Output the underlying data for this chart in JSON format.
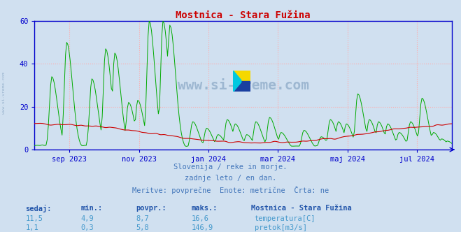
{
  "title": "Mostnica - Stara Fužina",
  "title_color": "#cc0000",
  "bg_color": "#d0e0f0",
  "plot_bg_color": "#d0e0f0",
  "grid_color": "#ffaaaa",
  "xlim_days": 365,
  "ylim": [
    0,
    60
  ],
  "yticks": [
    0,
    20,
    40,
    60
  ],
  "temp_color": "#cc0000",
  "flow_color": "#00aa00",
  "axis_color": "#0000cc",
  "text_color": "#4477bb",
  "header_color": "#2255aa",
  "val_color": "#4499cc",
  "watermark_color": "#2a5a8a",
  "side_watermark": "www.si-vreme.com",
  "watermark_text": "www.si-vreme.com",
  "footer_line1": "Slovenija / reke in morje.",
  "footer_line2": "zadnje leto / en dan.",
  "footer_line3": "Meritve: povprečne  Enote: metrične  Črta: ne",
  "table_header": [
    "sedaj:",
    "min.:",
    "povpr.:",
    "maks.:"
  ],
  "station_name": "Mostnica - Stara Fužina",
  "row1_vals": [
    "11,5",
    "4,9",
    "8,7",
    "16,6"
  ],
  "row2_vals": [
    "1,1",
    "0,3",
    "5,8",
    "146,9"
  ],
  "legend_temp": "temperatura[C]",
  "legend_flow": "pretok[m3/s]",
  "xtick_labels": [
    "sep 2023",
    "nov 2023",
    "jan 2024",
    "mar 2024",
    "maj 2024",
    "jul 2024"
  ],
  "xtick_positions": [
    0.083,
    0.25,
    0.416,
    0.583,
    0.75,
    0.916
  ],
  "logo_color_yellow": "#f5d800",
  "logo_color_blue": "#1a3fa0",
  "logo_color_cyan": "#00c8e0"
}
